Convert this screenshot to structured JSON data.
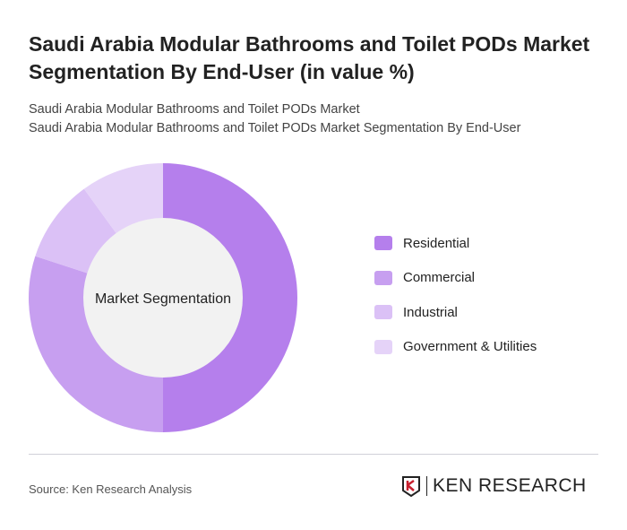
{
  "title": "Saudi Arabia Modular Bathrooms and Toilet PODs Market Segmentation By End-User (in value %)",
  "subtitle1": "Saudi Arabia Modular Bathrooms and Toilet PODs Market",
  "subtitle2": "Saudi Arabia Modular Bathrooms and Toilet PODs Market Segmentation By End-User",
  "source": "Source: Ken Research Analysis",
  "logo_text": "KEN RESEARCH",
  "chart_data": {
    "type": "pie",
    "donut": true,
    "center_label": "Market Segmentation",
    "categories": [
      "Residential",
      "Commercial",
      "Industrial",
      "Government & Utilities"
    ],
    "values": [
      50,
      30,
      10,
      10
    ],
    "colors": [
      "#b57fec",
      "#c79ff0",
      "#dbc1f6",
      "#e5d3f8"
    ],
    "legend_placement": "right"
  }
}
